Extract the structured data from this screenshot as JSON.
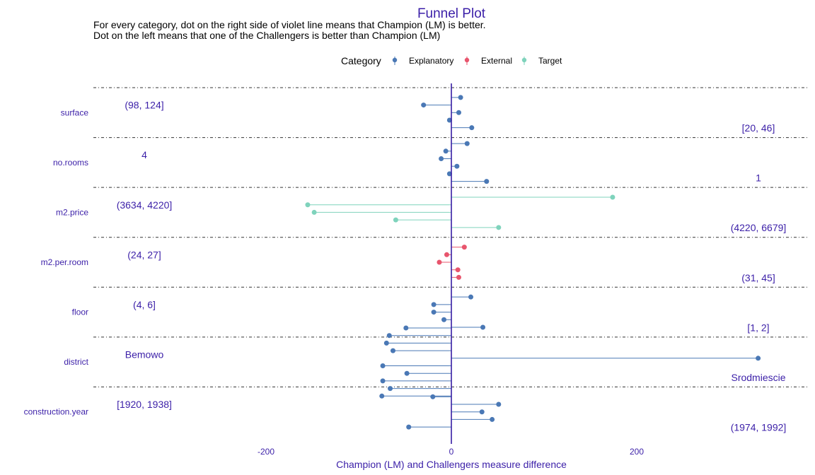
{
  "chart_data": {
    "type": "funnel-lollipop",
    "title": "Funnel Plot",
    "subtitle_lines": [
      "For every category, dot on the right side of violet line means that Champion (LM) is better.",
      "Dot on the left means that one of the Challengers is better than Champion (LM)"
    ],
    "xlabel": "Champion (LM) and Challengers measure difference",
    "xlim": [
      -385,
      385
    ],
    "x_ticks": [
      -200,
      0,
      200
    ],
    "grid": false,
    "legend": {
      "title": "Category",
      "position": "top",
      "entries": [
        {
          "name": "Explanatory",
          "color": "#4a78b5"
        },
        {
          "name": "External",
          "color": "#e8556d"
        },
        {
          "name": "Target",
          "color": "#7fd3bc"
        }
      ]
    },
    "reference_line_color": "#371ea3",
    "categories": [
      {
        "name": "surface",
        "color": "#4a78b5",
        "left_label": "(98, 124]",
        "right_label": "[20, 46]",
        "values": [
          10,
          -30,
          8,
          -2,
          22
        ]
      },
      {
        "name": "no.rooms",
        "color": "#4a78b5",
        "left_label": "4",
        "right_label": "1",
        "values": [
          17,
          -6,
          -11,
          6,
          -2,
          38
        ]
      },
      {
        "name": "m2.price",
        "color": "#7fd3bc",
        "left_label": "(3634, 4220]",
        "right_label": "(4220, 6679]",
        "values": [
          174,
          -155,
          -148,
          -60,
          51
        ]
      },
      {
        "name": "m2.per.room",
        "color": "#e8556d",
        "left_label": "(24, 27]",
        "right_label": "(31, 45]",
        "values": [
          14,
          -5,
          -13,
          7,
          8
        ]
      },
      {
        "name": "floor",
        "color": "#4a78b5",
        "left_label": "(4, 6]",
        "right_label": "[1, 2]",
        "values": [
          21,
          -19,
          -19,
          -8,
          34
        ]
      },
      {
        "name": "district",
        "color": "#4a78b5",
        "left_label": "Bemowo",
        "right_label": "Srodmiescie",
        "values": [
          -49,
          -67,
          -70,
          -63,
          331,
          -74,
          -48,
          -74,
          -66,
          -75
        ]
      },
      {
        "name": "construction.year",
        "color": "#4a78b5",
        "left_label": "[1920, 1938]",
        "right_label": "(1974, 1992]",
        "values": [
          -20,
          51,
          33,
          44,
          -46
        ]
      }
    ]
  }
}
